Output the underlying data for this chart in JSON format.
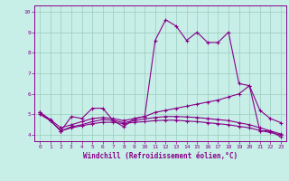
{
  "title": "",
  "xlabel": "Windchill (Refroidissement éolien,°C)",
  "ylabel": "",
  "bg_color": "#c8eee8",
  "line_color": "#880088",
  "grid_color": "#99ccbb",
  "xlim": [
    -0.5,
    23.5
  ],
  "ylim": [
    3.7,
    10.3
  ],
  "xticks": [
    0,
    1,
    2,
    3,
    4,
    5,
    6,
    7,
    8,
    9,
    10,
    11,
    12,
    13,
    14,
    15,
    16,
    17,
    18,
    19,
    20,
    21,
    22,
    23
  ],
  "yticks": [
    4,
    5,
    6,
    7,
    8,
    9,
    10
  ],
  "series1_x": [
    0,
    1,
    2,
    3,
    4,
    5,
    6,
    7,
    8,
    9,
    10,
    11,
    12,
    13,
    14,
    15,
    16,
    17,
    18,
    19,
    20,
    21,
    22,
    23
  ],
  "series1_y": [
    5.1,
    4.7,
    4.2,
    4.9,
    4.8,
    5.3,
    5.3,
    4.7,
    4.4,
    4.8,
    4.9,
    8.6,
    9.6,
    9.3,
    8.6,
    9.0,
    8.5,
    8.5,
    9.0,
    6.5,
    6.4,
    4.2,
    4.2,
    3.9
  ],
  "series2_x": [
    0,
    1,
    2,
    3,
    4,
    5,
    6,
    7,
    8,
    9,
    10,
    11,
    12,
    13,
    14,
    15,
    16,
    17,
    18,
    19,
    20,
    21,
    22,
    23
  ],
  "series2_y": [
    5.1,
    4.75,
    4.35,
    4.5,
    4.65,
    4.8,
    4.85,
    4.8,
    4.7,
    4.8,
    4.9,
    5.1,
    5.2,
    5.3,
    5.4,
    5.5,
    5.6,
    5.7,
    5.85,
    6.0,
    6.4,
    5.2,
    4.8,
    4.6
  ],
  "series3_x": [
    0,
    1,
    2,
    3,
    4,
    5,
    6,
    7,
    8,
    9,
    10,
    11,
    12,
    13,
    14,
    15,
    16,
    17,
    18,
    19,
    20,
    21,
    22,
    23
  ],
  "series3_y": [
    5.1,
    4.7,
    4.2,
    4.4,
    4.5,
    4.65,
    4.75,
    4.72,
    4.6,
    4.7,
    4.78,
    4.85,
    4.9,
    4.9,
    4.88,
    4.85,
    4.8,
    4.75,
    4.7,
    4.6,
    4.5,
    4.35,
    4.2,
    4.05
  ],
  "series4_x": [
    0,
    1,
    2,
    3,
    4,
    5,
    6,
    7,
    8,
    9,
    10,
    11,
    12,
    13,
    14,
    15,
    16,
    17,
    18,
    19,
    20,
    21,
    22,
    23
  ],
  "series4_y": [
    5.0,
    4.7,
    4.2,
    4.35,
    4.45,
    4.55,
    4.62,
    4.62,
    4.55,
    4.62,
    4.65,
    4.7,
    4.72,
    4.72,
    4.68,
    4.65,
    4.6,
    4.55,
    4.5,
    4.42,
    4.35,
    4.22,
    4.12,
    4.0
  ]
}
